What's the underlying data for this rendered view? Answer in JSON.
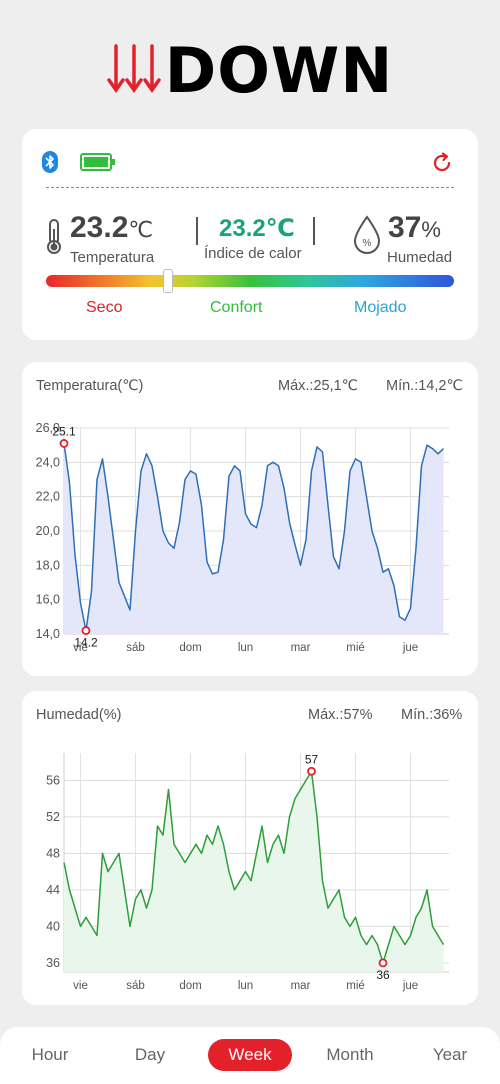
{
  "app": {
    "logo_text": "DOWN"
  },
  "status": {
    "bluetooth_icon": "bluetooth-icon",
    "battery_icon": "battery-full-icon",
    "refresh_icon": "refresh-icon",
    "battery_color": "#2fbf3a",
    "bluetooth_color": "#1e88e5",
    "refresh_color": "#e2212b"
  },
  "current": {
    "temperature_value": "23.2",
    "temperature_unit": "℃",
    "temperature_label": "Temperatura",
    "heat_index_value": "23.2℃",
    "heat_index_label": "Índice de calor",
    "humidity_value": "37",
    "humidity_unit": "%",
    "humidity_label": "Humedad",
    "comfort_level": 0.3,
    "scale_labels": {
      "dry": "Seco",
      "comfort": "Confort",
      "wet": "Mojado"
    },
    "colors": {
      "dry": "#e2212b",
      "comfort": "#2fbf3a",
      "wet": "#2aa4d8",
      "heat_index": "#1aa37a"
    }
  },
  "temp_card": {
    "title": "Temperatura(℃)",
    "max": "Máx.:25,1℃",
    "min": "Mín.:14,2℃"
  },
  "hum_card": {
    "title": "Humedad(%)",
    "max": "Máx.:57%",
    "min": "Mín.:36%"
  },
  "tabs": [
    "Hour",
    "Day",
    "Week",
    "Month",
    "Year"
  ],
  "active_tab": "Week",
  "chart_data": [
    {
      "type": "area",
      "title": "Temperatura(℃)",
      "x_unit": "day",
      "categories": [
        "vie",
        "sáb",
        "dom",
        "lun",
        "mar",
        "mié",
        "jue"
      ],
      "ylim": [
        14.0,
        26.0
      ],
      "yticks": [
        "14,0",
        "16,0",
        "18,0",
        "20,0",
        "22,0",
        "24,0",
        "26,0"
      ],
      "max_label": "25.1",
      "min_label": "14.2",
      "color": "#2e6fb8",
      "fill": "#e4e6fa",
      "x": [
        0,
        0.1,
        0.2,
        0.3,
        0.4,
        0.5,
        0.6,
        0.7,
        0.8,
        0.9,
        1.0,
        1.1,
        1.2,
        1.3,
        1.4,
        1.5,
        1.6,
        1.7,
        1.8,
        1.9,
        2.0,
        2.1,
        2.2,
        2.3,
        2.4,
        2.5,
        2.6,
        2.7,
        2.8,
        2.9,
        3.0,
        3.1,
        3.2,
        3.3,
        3.4,
        3.5,
        3.6,
        3.7,
        3.8,
        3.9,
        4.0,
        4.1,
        4.2,
        4.3,
        4.4,
        4.5,
        4.6,
        4.7,
        4.8,
        4.9,
        5.0,
        5.1,
        5.2,
        5.3,
        5.4,
        5.5,
        5.6,
        5.7,
        5.8,
        5.9,
        6.0,
        6.1,
        6.2,
        6.3,
        6.4,
        6.5,
        6.6,
        6.7,
        6.8,
        6.9
      ],
      "y": [
        25.1,
        22.8,
        18.6,
        15.8,
        14.2,
        16.5,
        23.0,
        24.2,
        22.0,
        19.5,
        17.0,
        16.2,
        15.4,
        20.0,
        23.5,
        24.5,
        23.8,
        22.0,
        20.0,
        19.3,
        19.0,
        20.5,
        23.0,
        23.5,
        23.3,
        21.5,
        18.2,
        17.5,
        17.6,
        19.5,
        23.2,
        23.8,
        23.5,
        21.0,
        20.4,
        20.2,
        21.5,
        23.8,
        24.0,
        23.8,
        22.5,
        20.5,
        19.2,
        18.0,
        19.5,
        23.5,
        24.9,
        24.6,
        21.5,
        18.5,
        17.8,
        20.0,
        23.5,
        24.2,
        24.0,
        22.0,
        20.0,
        19.0,
        17.6,
        17.8,
        16.8,
        15.0,
        14.8,
        15.5,
        19.0,
        23.8,
        25.0,
        24.8,
        24.5,
        24.8
      ]
    },
    {
      "type": "area",
      "title": "Humedad(%)",
      "x_unit": "day",
      "categories": [
        "vie",
        "sáb",
        "dom",
        "lun",
        "mar",
        "mié",
        "jue"
      ],
      "ylim": [
        35,
        59
      ],
      "yticks": [
        "36",
        "40",
        "44",
        "48",
        "52",
        "56"
      ],
      "max_label": "57",
      "min_label": "36",
      "color": "#2e9e3a",
      "fill": "#e8f6ec",
      "x": [
        0,
        0.1,
        0.2,
        0.3,
        0.4,
        0.5,
        0.6,
        0.7,
        0.8,
        0.9,
        1.0,
        1.1,
        1.2,
        1.3,
        1.4,
        1.5,
        1.6,
        1.7,
        1.8,
        1.9,
        2.0,
        2.1,
        2.2,
        2.3,
        2.4,
        2.5,
        2.6,
        2.7,
        2.8,
        2.9,
        3.0,
        3.1,
        3.2,
        3.3,
        3.4,
        3.5,
        3.6,
        3.7,
        3.8,
        3.9,
        4.0,
        4.1,
        4.2,
        4.3,
        4.4,
        4.5,
        4.6,
        4.7,
        4.8,
        4.9,
        5.0,
        5.1,
        5.2,
        5.3,
        5.4,
        5.5,
        5.6,
        5.7,
        5.8,
        5.9,
        6.0,
        6.1,
        6.2,
        6.3,
        6.4,
        6.5,
        6.6,
        6.7,
        6.8,
        6.9
      ],
      "y": [
        47,
        44,
        42,
        40,
        41,
        40,
        39,
        48,
        46,
        47,
        48,
        44,
        40,
        43,
        44,
        42,
        44,
        51,
        50,
        55,
        49,
        48,
        47,
        48,
        49,
        48,
        50,
        49,
        51,
        49,
        46,
        44,
        45,
        46,
        45,
        48,
        51,
        47,
        49,
        50,
        48,
        52,
        54,
        55,
        56,
        57,
        52,
        45,
        42,
        43,
        44,
        41,
        40,
        41,
        39,
        38,
        39,
        38,
        36,
        38,
        40,
        39,
        38,
        39,
        41,
        42,
        44,
        40,
        39,
        38
      ]
    }
  ]
}
